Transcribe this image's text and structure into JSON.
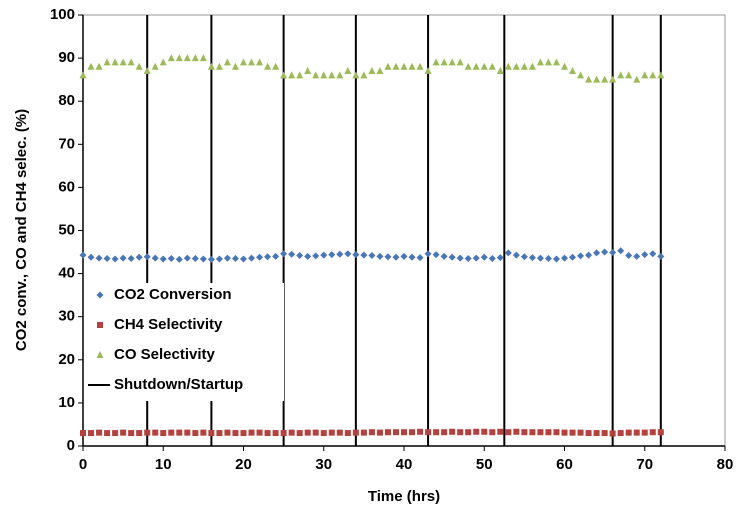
{
  "chart_data": {
    "type": "scatter",
    "xlabel": "Time (hrs)",
    "ylabel": "CO2 conv., CO and CH4 selec. (%)",
    "xlim": [
      0,
      80
    ],
    "xticks": [
      0,
      10,
      20,
      30,
      40,
      50,
      60,
      70,
      80
    ],
    "ylim": [
      0,
      100
    ],
    "yticks": [
      0,
      10,
      20,
      30,
      40,
      50,
      60,
      70,
      80,
      90,
      100
    ],
    "grid": false,
    "legend": "lower left",
    "x": [
      0,
      1,
      2,
      3,
      4,
      5,
      6,
      7,
      8,
      9,
      10,
      11,
      12,
      13,
      14,
      15,
      16,
      17,
      18,
      19,
      20,
      21,
      22,
      23,
      24,
      25,
      26,
      27,
      28,
      29,
      30,
      31,
      32,
      33,
      34,
      35,
      36,
      37,
      38,
      39,
      40,
      41,
      42,
      43,
      44,
      45,
      46,
      47,
      48,
      49,
      50,
      51,
      52,
      53,
      54,
      55,
      56,
      57,
      58,
      59,
      60,
      61,
      62,
      63,
      64,
      65,
      66,
      67,
      68,
      69,
      70,
      71,
      72
    ],
    "series": [
      {
        "name": "CO2 Conversion",
        "color": "#4a76b8",
        "marker": "diamond",
        "values": [
          44.3,
          43.8,
          43.6,
          43.5,
          43.4,
          43.6,
          43.5,
          43.8,
          43.9,
          43.6,
          43.4,
          43.5,
          43.3,
          43.6,
          43.5,
          43.4,
          43.3,
          43.4,
          43.6,
          43.5,
          43.4,
          43.6,
          43.8,
          43.9,
          44.0,
          44.6,
          44.5,
          44.2,
          44.0,
          44.1,
          44.3,
          44.4,
          44.5,
          44.6,
          44.4,
          44.3,
          44.2,
          44.0,
          43.9,
          43.8,
          44.0,
          43.8,
          43.7,
          44.6,
          44.4,
          44.0,
          43.8,
          43.6,
          43.5,
          43.6,
          43.8,
          43.5,
          43.7,
          44.8,
          44.3,
          43.9,
          43.7,
          43.6,
          43.5,
          43.4,
          43.6,
          43.8,
          44.1,
          44.3,
          44.8,
          45.0,
          44.9,
          45.3,
          44.2,
          44.0,
          44.4,
          44.6,
          44.0
        ]
      },
      {
        "name": "CH4 Selectivity",
        "color": "#b5413e",
        "marker": "square",
        "values": [
          3.0,
          3.0,
          3.1,
          3.0,
          3.0,
          3.1,
          3.0,
          3.0,
          3.1,
          3.1,
          3.0,
          3.1,
          3.1,
          3.1,
          3.0,
          3.1,
          3.0,
          3.0,
          3.1,
          3.0,
          3.0,
          3.1,
          3.1,
          3.0,
          3.0,
          3.0,
          3.1,
          3.0,
          3.1,
          3.1,
          3.0,
          3.1,
          3.1,
          3.0,
          3.1,
          3.1,
          3.2,
          3.1,
          3.2,
          3.2,
          3.2,
          3.2,
          3.3,
          3.2,
          3.2,
          3.2,
          3.3,
          3.2,
          3.2,
          3.3,
          3.3,
          3.2,
          3.3,
          3.2,
          3.3,
          3.2,
          3.2,
          3.2,
          3.2,
          3.2,
          3.1,
          3.1,
          3.1,
          3.0,
          3.0,
          3.0,
          2.9,
          3.0,
          3.1,
          3.1,
          3.1,
          3.2,
          3.2
        ]
      },
      {
        "name": "CO Selectivity",
        "color": "#9bbb59",
        "marker": "triangle",
        "values": [
          86,
          88,
          88,
          89,
          89,
          89,
          89,
          88,
          87,
          88,
          89,
          90,
          90,
          90,
          90,
          90,
          88,
          88,
          89,
          88,
          89,
          89,
          89,
          88,
          88,
          86,
          86,
          86,
          87,
          86,
          86,
          86,
          86,
          87,
          86,
          86,
          87,
          87,
          88,
          88,
          88,
          88,
          88,
          87,
          89,
          89,
          89,
          89,
          88,
          88,
          88,
          88,
          87,
          88,
          88,
          88,
          88,
          89,
          89,
          89,
          88,
          87,
          86,
          85,
          85,
          85,
          85,
          86,
          86,
          85,
          86,
          86,
          86
        ]
      }
    ],
    "shutdowns": {
      "name": "Shutdown/Startup",
      "color": "#000000",
      "x": [
        8,
        16,
        25,
        34,
        43,
        52.5,
        66,
        72
      ]
    }
  }
}
